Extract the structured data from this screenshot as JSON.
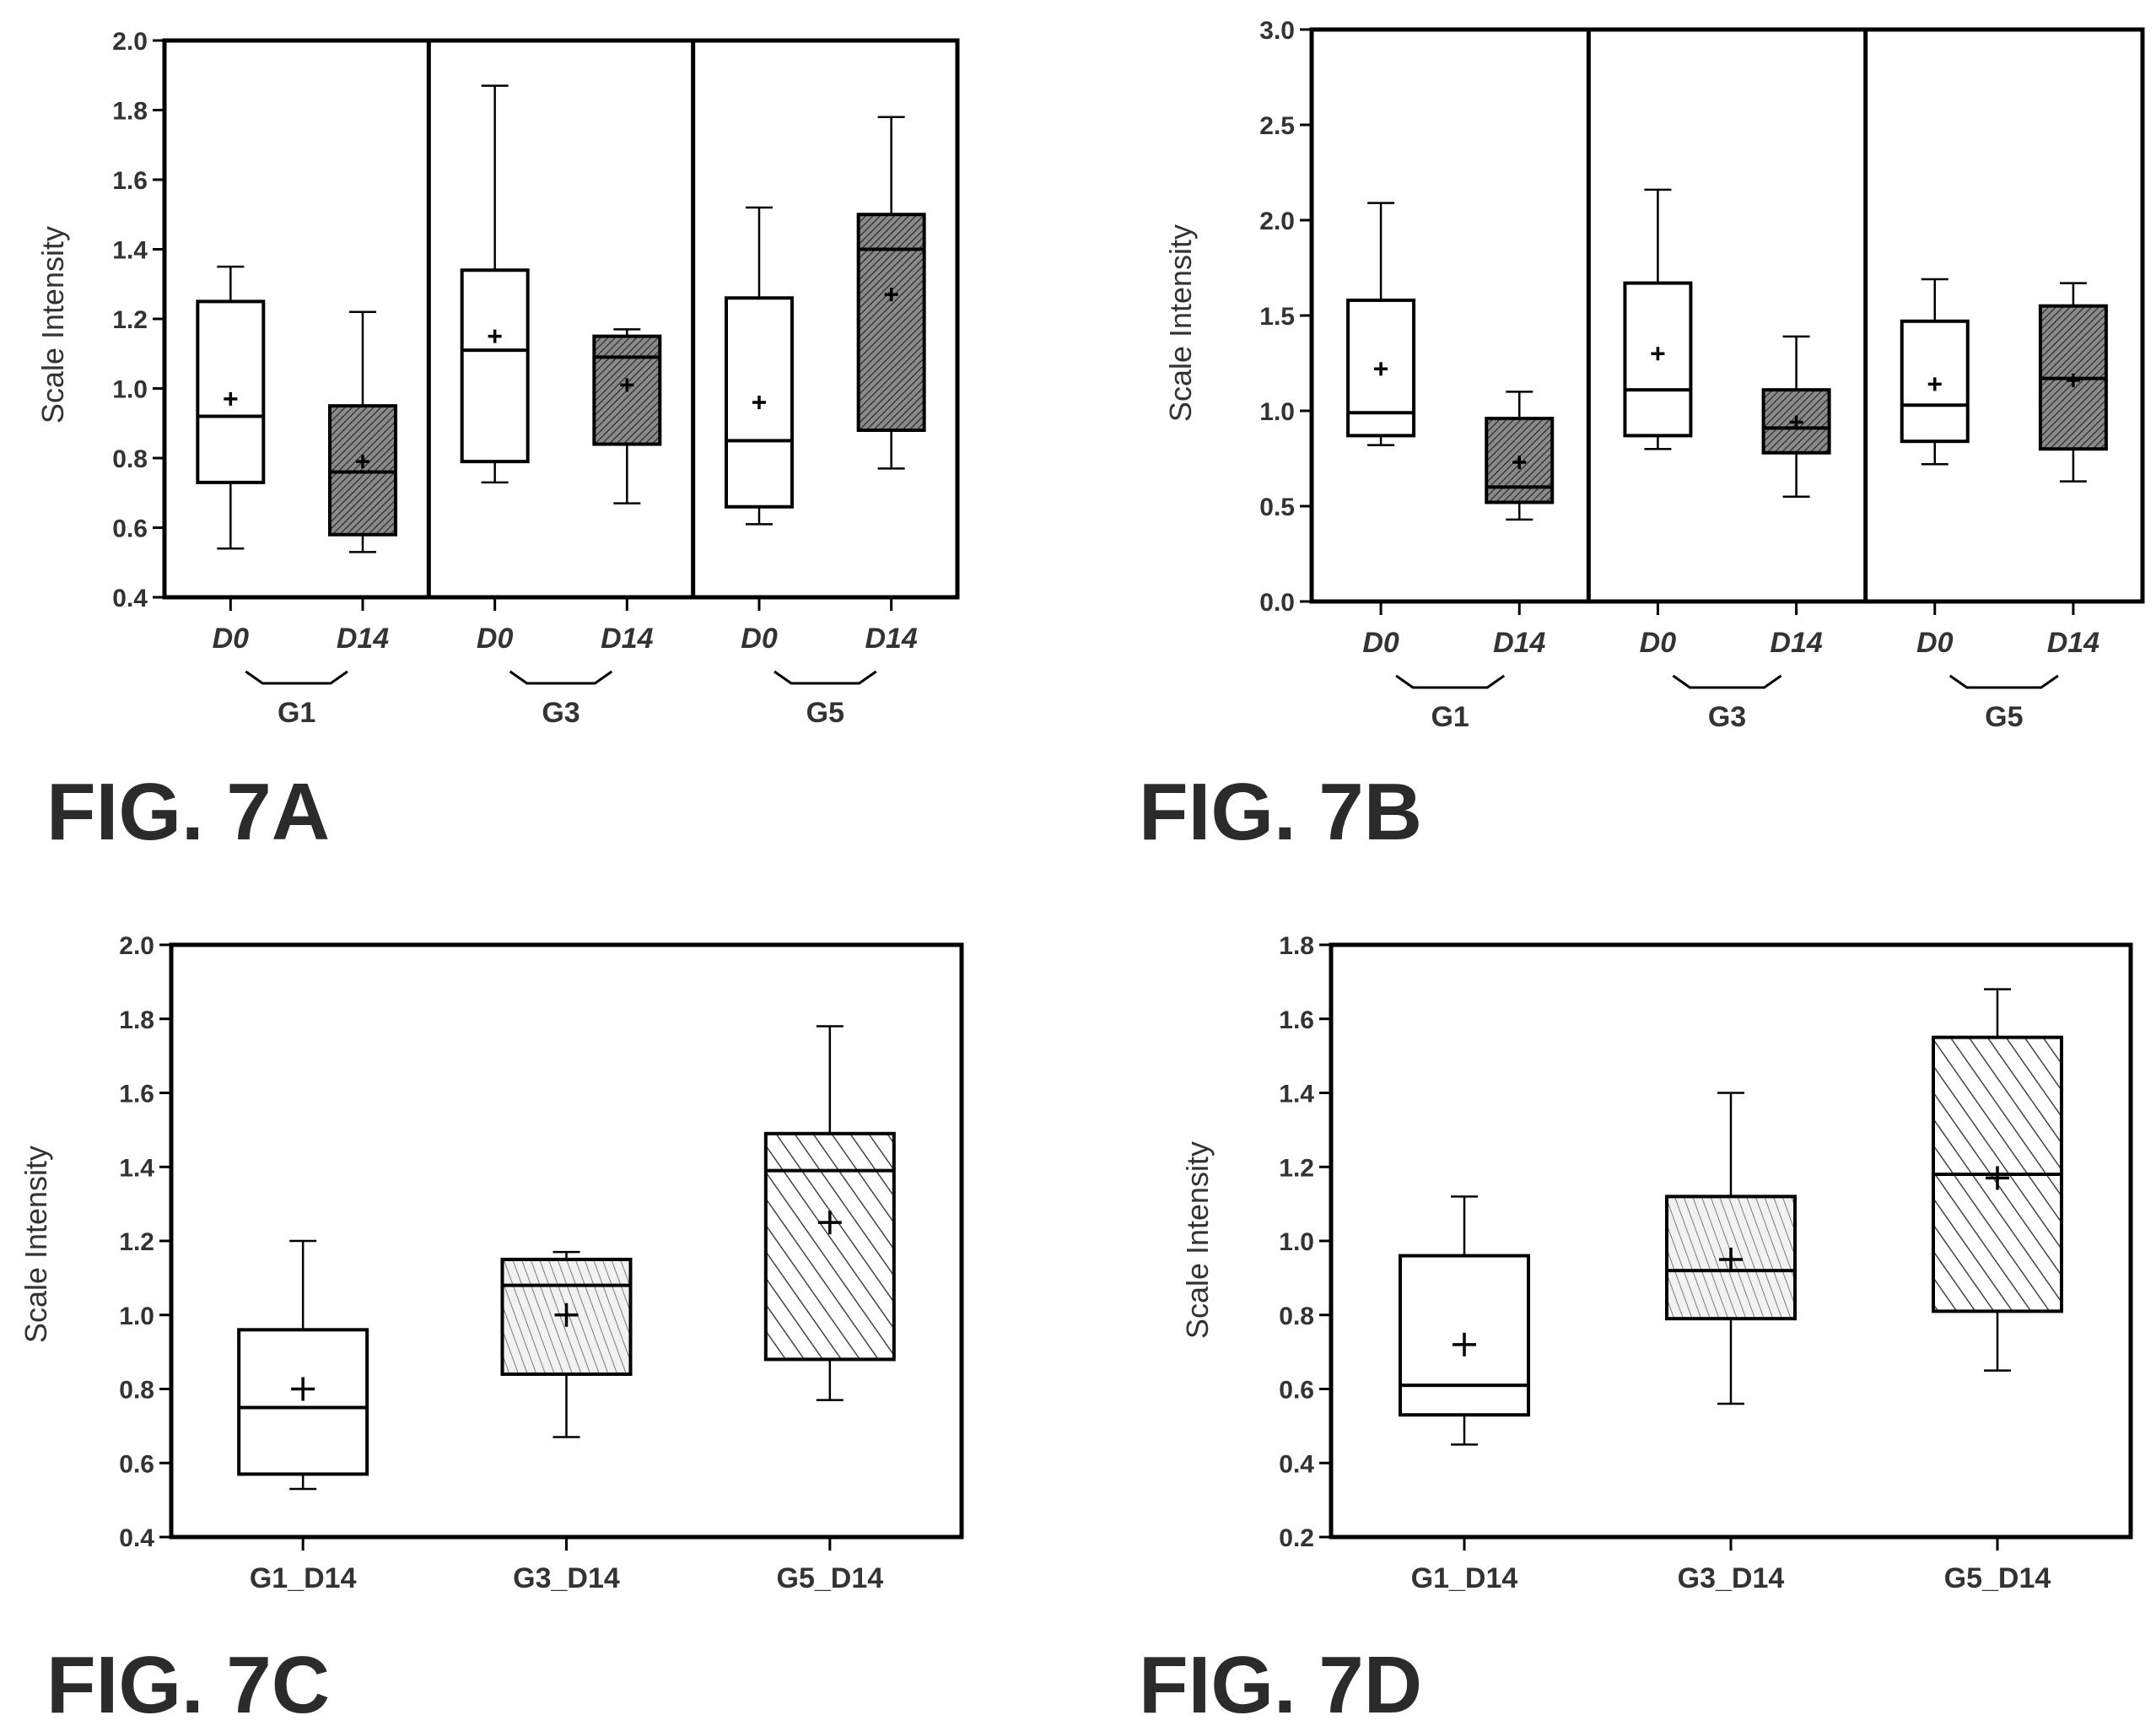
{
  "figures": [
    {
      "id": "7A",
      "figure_label": "FIG. 7A",
      "ylabel": "Scale Intensity",
      "ylim": [
        0.4,
        2.0
      ],
      "yticks": [
        "0.4",
        "0.6",
        "0.8",
        "1.0",
        "1.2",
        "1.4",
        "1.6",
        "1.8",
        "2.0"
      ],
      "grouped": true,
      "groups": [
        {
          "name": "G1",
          "boxes": [
            {
              "label": "D0",
              "style": "white",
              "whisker_low": 0.54,
              "q1": 0.73,
              "median": 0.92,
              "q3": 1.25,
              "whisker_high": 1.35,
              "mean": 0.97
            },
            {
              "label": "D14",
              "style": "dark",
              "whisker_low": 0.53,
              "q1": 0.58,
              "median": 0.76,
              "q3": 0.95,
              "whisker_high": 1.22,
              "mean": 0.79
            }
          ]
        },
        {
          "name": "G3",
          "boxes": [
            {
              "label": "D0",
              "style": "white",
              "whisker_low": 0.73,
              "q1": 0.79,
              "median": 1.11,
              "q3": 1.34,
              "whisker_high": 1.87,
              "mean": 1.15
            },
            {
              "label": "D14",
              "style": "dark",
              "whisker_low": 0.67,
              "q1": 0.84,
              "median": 1.09,
              "q3": 1.15,
              "whisker_high": 1.17,
              "mean": 1.01
            }
          ]
        },
        {
          "name": "G5",
          "boxes": [
            {
              "label": "D0",
              "style": "white",
              "whisker_low": 0.61,
              "q1": 0.66,
              "median": 0.85,
              "q3": 1.26,
              "whisker_high": 1.52,
              "mean": 0.96
            },
            {
              "label": "D14",
              "style": "dark",
              "whisker_low": 0.77,
              "q1": 0.88,
              "median": 1.4,
              "q3": 1.5,
              "whisker_high": 1.78,
              "mean": 1.27
            }
          ]
        }
      ]
    },
    {
      "id": "7B",
      "figure_label": "FIG. 7B",
      "ylabel": "Scale Intensity",
      "ylim": [
        0.0,
        3.0
      ],
      "yticks": [
        "0.0",
        "0.5",
        "1.0",
        "1.5",
        "2.0",
        "2.5",
        "3.0"
      ],
      "grouped": true,
      "groups": [
        {
          "name": "G1",
          "boxes": [
            {
              "label": "D0",
              "style": "white",
              "whisker_low": 0.82,
              "q1": 0.87,
              "median": 0.99,
              "q3": 1.58,
              "whisker_high": 2.09,
              "mean": 1.22
            },
            {
              "label": "D14",
              "style": "dark",
              "whisker_low": 0.43,
              "q1": 0.52,
              "median": 0.6,
              "q3": 0.96,
              "whisker_high": 1.1,
              "mean": 0.73
            }
          ]
        },
        {
          "name": "G3",
          "boxes": [
            {
              "label": "D0",
              "style": "white",
              "whisker_low": 0.8,
              "q1": 0.87,
              "median": 1.11,
              "q3": 1.67,
              "whisker_high": 2.16,
              "mean": 1.3
            },
            {
              "label": "D14",
              "style": "dark",
              "whisker_low": 0.55,
              "q1": 0.78,
              "median": 0.91,
              "q3": 1.11,
              "whisker_high": 1.39,
              "mean": 0.94
            }
          ]
        },
        {
          "name": "G5",
          "boxes": [
            {
              "label": "D0",
              "style": "white",
              "whisker_low": 0.72,
              "q1": 0.84,
              "median": 1.03,
              "q3": 1.47,
              "whisker_high": 1.69,
              "mean": 1.14
            },
            {
              "label": "D14",
              "style": "dark",
              "whisker_low": 0.63,
              "q1": 0.8,
              "median": 1.17,
              "q3": 1.55,
              "whisker_high": 1.67,
              "mean": 1.16
            }
          ]
        }
      ]
    },
    {
      "id": "7C",
      "figure_label": "FIG. 7C",
      "ylabel": "Scale Intensity",
      "ylim": [
        0.4,
        2.0
      ],
      "yticks": [
        "0.4",
        "0.6",
        "0.8",
        "1.0",
        "1.2",
        "1.4",
        "1.6",
        "1.8",
        "2.0"
      ],
      "grouped": false,
      "groups": [
        {
          "name": "",
          "boxes": [
            {
              "label": "G1_D14",
              "style": "white",
              "whisker_low": 0.53,
              "q1": 0.57,
              "median": 0.75,
              "q3": 0.96,
              "whisker_high": 1.2,
              "mean": 0.8
            },
            {
              "label": "G3_D14",
              "style": "light-hatch",
              "whisker_low": 0.67,
              "q1": 0.84,
              "median": 1.08,
              "q3": 1.15,
              "whisker_high": 1.17,
              "mean": 1.0
            },
            {
              "label": "G5_D14",
              "style": "hatch",
              "whisker_low": 0.77,
              "q1": 0.88,
              "median": 1.39,
              "q3": 1.49,
              "whisker_high": 1.78,
              "mean": 1.25
            }
          ]
        }
      ]
    },
    {
      "id": "7D",
      "figure_label": "FIG. 7D",
      "ylabel": "Scale Intensity",
      "ylim": [
        0.2,
        1.8
      ],
      "yticks": [
        "0.2",
        "0.4",
        "0.6",
        "0.8",
        "1.0",
        "1.2",
        "1.4",
        "1.6",
        "1.8"
      ],
      "grouped": false,
      "groups": [
        {
          "name": "",
          "boxes": [
            {
              "label": "G1_D14",
              "style": "white",
              "whisker_low": 0.45,
              "q1": 0.53,
              "median": 0.61,
              "q3": 0.96,
              "whisker_high": 1.12,
              "mean": 0.72
            },
            {
              "label": "G3_D14",
              "style": "light-hatch",
              "whisker_low": 0.56,
              "q1": 0.79,
              "median": 0.92,
              "q3": 1.12,
              "whisker_high": 1.4,
              "mean": 0.95
            },
            {
              "label": "G5_D14",
              "style": "hatch",
              "whisker_low": 0.65,
              "q1": 0.81,
              "median": 1.18,
              "q3": 1.55,
              "whisker_high": 1.68,
              "mean": 1.17
            }
          ]
        }
      ]
    }
  ],
  "chart_data": [
    {
      "type": "box",
      "figure": "FIG. 7A",
      "ylabel": "Scale Intensity",
      "ylim": [
        0.4,
        2.0
      ],
      "categories": [
        "G1 D0",
        "G1 D14",
        "G3 D0",
        "G3 D14",
        "G5 D0",
        "G5 D14"
      ],
      "whisker_low": [
        0.54,
        0.53,
        0.73,
        0.67,
        0.61,
        0.77
      ],
      "q1": [
        0.73,
        0.58,
        0.79,
        0.84,
        0.66,
        0.88
      ],
      "median": [
        0.92,
        0.76,
        1.11,
        1.09,
        0.85,
        1.4
      ],
      "q3": [
        1.25,
        0.95,
        1.34,
        1.15,
        1.26,
        1.5
      ],
      "whisker_high": [
        1.35,
        1.22,
        1.87,
        1.17,
        1.52,
        1.78
      ],
      "mean": [
        0.97,
        0.79,
        1.15,
        1.01,
        0.96,
        1.27
      ]
    },
    {
      "type": "box",
      "figure": "FIG. 7B",
      "ylabel": "Scale Intensity",
      "ylim": [
        0.0,
        3.0
      ],
      "categories": [
        "G1 D0",
        "G1 D14",
        "G3 D0",
        "G3 D14",
        "G5 D0",
        "G5 D14"
      ],
      "whisker_low": [
        0.82,
        0.43,
        0.8,
        0.55,
        0.72,
        0.63
      ],
      "q1": [
        0.87,
        0.52,
        0.87,
        0.78,
        0.84,
        0.8
      ],
      "median": [
        0.99,
        0.6,
        1.11,
        0.91,
        1.03,
        1.17
      ],
      "q3": [
        1.58,
        0.96,
        1.67,
        1.11,
        1.47,
        1.55
      ],
      "whisker_high": [
        2.09,
        1.1,
        2.16,
        1.39,
        1.69,
        1.67
      ],
      "mean": [
        1.22,
        0.73,
        1.3,
        0.94,
        1.14,
        1.16
      ]
    },
    {
      "type": "box",
      "figure": "FIG. 7C",
      "ylabel": "Scale Intensity",
      "ylim": [
        0.4,
        2.0
      ],
      "categories": [
        "G1_D14",
        "G3_D14",
        "G5_D14"
      ],
      "whisker_low": [
        0.53,
        0.67,
        0.77
      ],
      "q1": [
        0.57,
        0.84,
        0.88
      ],
      "median": [
        0.75,
        1.08,
        1.39
      ],
      "q3": [
        0.96,
        1.15,
        1.49
      ],
      "whisker_high": [
        1.2,
        1.17,
        1.78
      ],
      "mean": [
        0.8,
        1.0,
        1.25
      ]
    },
    {
      "type": "box",
      "figure": "FIG. 7D",
      "ylabel": "Scale Intensity",
      "ylim": [
        0.2,
        1.8
      ],
      "categories": [
        "G1_D14",
        "G3_D14",
        "G5_D14"
      ],
      "whisker_low": [
        0.45,
        0.56,
        0.65
      ],
      "q1": [
        0.53,
        0.79,
        0.81
      ],
      "median": [
        0.61,
        0.92,
        1.18
      ],
      "q3": [
        0.96,
        1.12,
        1.55
      ],
      "whisker_high": [
        1.12,
        1.4,
        1.68
      ],
      "mean": [
        0.72,
        0.95,
        1.17
      ]
    }
  ]
}
